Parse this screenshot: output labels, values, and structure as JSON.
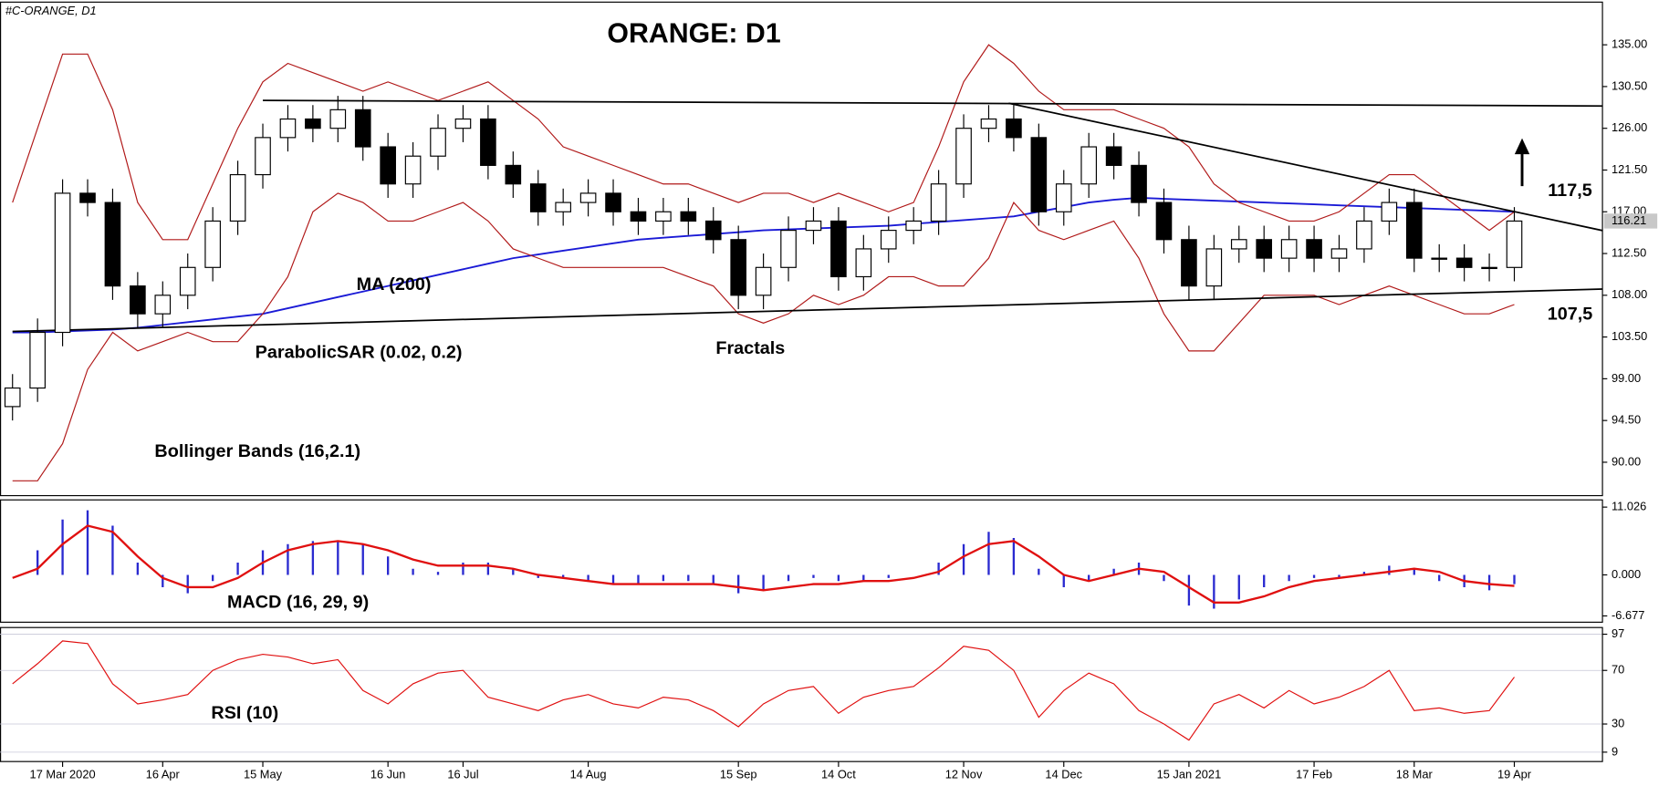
{
  "chart_data": {
    "type": "candlestick",
    "title": "ORANGE: D1",
    "symbol_label": "#C-ORANGE, D1",
    "categories": [
      null,
      null,
      "17 Mar 2020",
      null,
      null,
      null,
      "16 Apr",
      null,
      null,
      null,
      "15 May",
      null,
      null,
      null,
      null,
      "16 Jun",
      null,
      null,
      "16 Jul",
      null,
      null,
      null,
      null,
      "14 Aug",
      null,
      null,
      null,
      null,
      null,
      "15 Sep",
      null,
      null,
      null,
      "14 Oct",
      null,
      null,
      null,
      null,
      "12 Nov",
      null,
      null,
      null,
      "14 Dec",
      null,
      null,
      null,
      null,
      "15 Jan 2021",
      null,
      null,
      null,
      null,
      "17 Feb",
      null,
      null,
      null,
      "18 Mar",
      null,
      null,
      null,
      "19 Apr"
    ],
    "open": [
      96,
      98,
      104,
      119,
      118,
      109,
      106,
      108,
      111,
      116,
      121,
      125,
      127,
      126,
      128,
      124,
      120,
      123,
      126,
      127,
      122,
      120,
      117,
      118,
      119,
      117,
      116,
      117,
      116,
      114,
      108,
      111,
      115,
      116,
      110,
      113,
      115,
      116,
      120,
      126,
      127,
      125,
      117,
      120,
      124,
      122,
      118,
      114,
      109,
      113,
      114,
      112,
      114,
      112,
      113,
      116,
      118,
      112,
      112,
      111,
      111
    ],
    "high": [
      99.5,
      105.5,
      120.5,
      120.5,
      119.5,
      110.5,
      109.5,
      112.5,
      117.5,
      122.5,
      126.5,
      128.5,
      128.5,
      129.5,
      129.5,
      125.5,
      124.5,
      127.5,
      128.5,
      128.5,
      123.5,
      121.5,
      119.5,
      120.5,
      120.5,
      118.5,
      118.5,
      118.5,
      117.5,
      115.5,
      112.5,
      116.5,
      117.5,
      117.5,
      114.5,
      116.5,
      117.5,
      121.5,
      127.5,
      128.5,
      128.5,
      126.5,
      121.5,
      125.5,
      125.5,
      123.5,
      119.5,
      115.5,
      114.5,
      115.5,
      115.5,
      115.5,
      115.5,
      114.5,
      117.5,
      119.5,
      119.5,
      113.5,
      113.5,
      112.5,
      117.5
    ],
    "low": [
      94.5,
      96.5,
      102.5,
      116.5,
      107.5,
      104.5,
      104.5,
      106.5,
      109.5,
      114.5,
      119.5,
      123.5,
      124.5,
      124.5,
      122.5,
      118.5,
      118.5,
      121.5,
      124.5,
      120.5,
      118.5,
      115.5,
      115.5,
      116.5,
      115.5,
      114.5,
      114.5,
      114.5,
      112.5,
      106.5,
      106.5,
      109.5,
      113.5,
      108.5,
      108.5,
      111.5,
      113.5,
      114.5,
      118.5,
      124.5,
      123.5,
      115.5,
      115.5,
      118.5,
      120.5,
      116.5,
      112.5,
      107.5,
      107.5,
      111.5,
      110.5,
      110.5,
      110.5,
      110.5,
      111.5,
      114.5,
      110.5,
      110.5,
      109.5,
      109.5,
      109.5
    ],
    "close": [
      98,
      104,
      119,
      118,
      109,
      106,
      108,
      111,
      116,
      121,
      125,
      127,
      126,
      128,
      124,
      120,
      123,
      126,
      127,
      122,
      120,
      117,
      118,
      119,
      117,
      116,
      117,
      116,
      114,
      108,
      111,
      115,
      116,
      110,
      113,
      115,
      116,
      120,
      126,
      127,
      125,
      117,
      120,
      124,
      122,
      118,
      114,
      109,
      113,
      114,
      112,
      114,
      112,
      113,
      116,
      118,
      112,
      112,
      111,
      111,
      116
    ],
    "up_color": "#ffffff",
    "down_color": "#000000",
    "ylim": [
      86.4,
      139.6
    ],
    "yticks": [
      {
        "value": 90,
        "label": "90.00"
      },
      {
        "value": 94.5,
        "label": "94.50"
      },
      {
        "value": 99,
        "label": "99.00"
      },
      {
        "value": 103.5,
        "label": "103.50"
      },
      {
        "value": 108,
        "label": "108.00"
      },
      {
        "value": 112.5,
        "label": "112.50"
      },
      {
        "value": 117,
        "label": "117.00"
      },
      {
        "value": 121.5,
        "label": "121.50"
      },
      {
        "value": 126,
        "label": "126.00"
      },
      {
        "value": 130.5,
        "label": "130.50"
      },
      {
        "value": 135,
        "label": "135.00"
      }
    ],
    "last_price_label": "116.21",
    "overlays": [
      {
        "name": "MA (200)",
        "color": "#1a1ad6",
        "values": [
          104,
          104,
          104.1,
          104.2,
          104.3,
          104.5,
          104.8,
          105.1,
          105.4,
          105.7,
          106,
          106.6,
          107.2,
          107.8,
          108.4,
          109,
          109.6,
          110.2,
          110.8,
          111.4,
          112,
          112.4,
          112.8,
          113.2,
          113.6,
          114,
          114.2,
          114.4,
          114.6,
          114.8,
          115,
          115.1,
          115.2,
          115.3,
          115.4,
          115.5,
          115.7,
          115.9,
          116.1,
          116.3,
          116.5,
          117,
          117.5,
          118,
          118.3,
          118.5,
          118.4,
          118.3,
          118.2,
          118.1,
          118,
          117.9,
          117.8,
          117.7,
          117.6,
          117.5,
          117.4,
          117.3,
          117.2,
          117.1,
          117
        ]
      },
      {
        "name": "Bollinger Bands (16,2.1)",
        "color": "#b01818",
        "upper": [
          118,
          126,
          134,
          134,
          128,
          118,
          114,
          114,
          120,
          126,
          131,
          133,
          132,
          131,
          130,
          131,
          130,
          129,
          130,
          131,
          129,
          127,
          124,
          123,
          122,
          121,
          120,
          120,
          119,
          118,
          119,
          119,
          118,
          119,
          118,
          117,
          118,
          124,
          131,
          135,
          133,
          130,
          128,
          128,
          128,
          127,
          126,
          124,
          120,
          118,
          117,
          116,
          116,
          117,
          119,
          121,
          121,
          119,
          117,
          115,
          117
        ],
        "lower": [
          88,
          88,
          92,
          100,
          104,
          102,
          103,
          104,
          103,
          103,
          106,
          110,
          117,
          119,
          118,
          116,
          116,
          117,
          118,
          116,
          113,
          112,
          111,
          111,
          111,
          111,
          111,
          110,
          109,
          106,
          105,
          106,
          108,
          107,
          108,
          110,
          110,
          109,
          109,
          112,
          118,
          115,
          114,
          115,
          116,
          112,
          106,
          102,
          102,
          105,
          108,
          108,
          108,
          107,
          108,
          109,
          108,
          107,
          106,
          106,
          107
        ]
      }
    ],
    "annotations": [
      "ParabolicSAR (0.02, 0.2)",
      "Fractals"
    ],
    "trendlines": [
      {
        "color": "#000000",
        "x": [
          10,
          64
        ],
        "values": [
          129,
          128.4
        ]
      },
      {
        "color": "#000000",
        "x": [
          0,
          64
        ],
        "values": [
          104.1,
          108.7
        ]
      },
      {
        "color": "#000000",
        "x": [
          39.8,
          64
        ],
        "values": [
          128.7,
          114.7
        ]
      }
    ],
    "level_labels": [
      {
        "value": 117.5,
        "label": "117,5"
      },
      {
        "value": 107.5,
        "label": "107,5"
      }
    ],
    "panels": [
      {
        "type": "macd",
        "name": "MACD (16, 29, 9)",
        "ylim": [
          -7.7,
          12.2
        ],
        "yticks": [
          11.026,
          {
            "value": 0,
            "label": "0.000"
          },
          -6.677
        ],
        "histogram": {
          "color": "#2a2ad0",
          "values": [
            0,
            4,
            9,
            10.5,
            8,
            2,
            -2,
            -3,
            -1,
            2,
            4,
            5,
            5.5,
            5.5,
            5,
            3,
            1,
            0.5,
            2,
            2,
            1,
            -0.5,
            -0.5,
            -1,
            -1.5,
            -1.5,
            -1,
            -1,
            -1.5,
            -3,
            -2.5,
            -1,
            -0.5,
            -1,
            -1,
            -0.5,
            0,
            2,
            5,
            7,
            6,
            1,
            -2,
            -1,
            1,
            2,
            -1,
            -5,
            -5.5,
            -4,
            -2,
            -1,
            -0.5,
            -0.5,
            0.5,
            1.5,
            1,
            -1,
            -2,
            -2.5,
            -1.5
          ]
        },
        "signal": {
          "color": "#e01010",
          "values": [
            -0.5,
            1,
            5,
            8,
            7,
            3,
            -0.5,
            -2,
            -2,
            -0.5,
            2,
            4,
            5,
            5.5,
            5,
            4,
            2.5,
            1.5,
            1.5,
            1.5,
            1,
            0,
            -0.5,
            -1,
            -1.5,
            -1.5,
            -1.5,
            -1.5,
            -1.5,
            -2,
            -2.5,
            -2,
            -1.5,
            -1.5,
            -1,
            -1,
            -0.5,
            0.5,
            3,
            5,
            5.5,
            3,
            0,
            -1,
            0,
            1,
            0.5,
            -2,
            -4.5,
            -4.5,
            -3.5,
            -2,
            -1,
            -0.5,
            0,
            0.5,
            1,
            0.5,
            -1,
            -1.5,
            -1.8
          ]
        }
      },
      {
        "type": "rsi",
        "name": "RSI (10)",
        "ylim": [
          2,
          102
        ],
        "yticks": [
          97,
          70,
          30,
          9
        ],
        "color": "#e01010",
        "values": [
          60,
          75,
          92,
          90,
          60,
          45,
          48,
          52,
          70,
          78,
          82,
          80,
          75,
          78,
          55,
          45,
          60,
          68,
          70,
          50,
          45,
          40,
          48,
          52,
          45,
          42,
          50,
          48,
          40,
          28,
          45,
          55,
          58,
          38,
          50,
          55,
          58,
          72,
          88,
          85,
          70,
          35,
          55,
          68,
          60,
          40,
          30,
          18,
          45,
          52,
          42,
          55,
          45,
          50,
          58,
          70,
          40,
          42,
          38,
          40,
          65
        ]
      }
    ]
  }
}
